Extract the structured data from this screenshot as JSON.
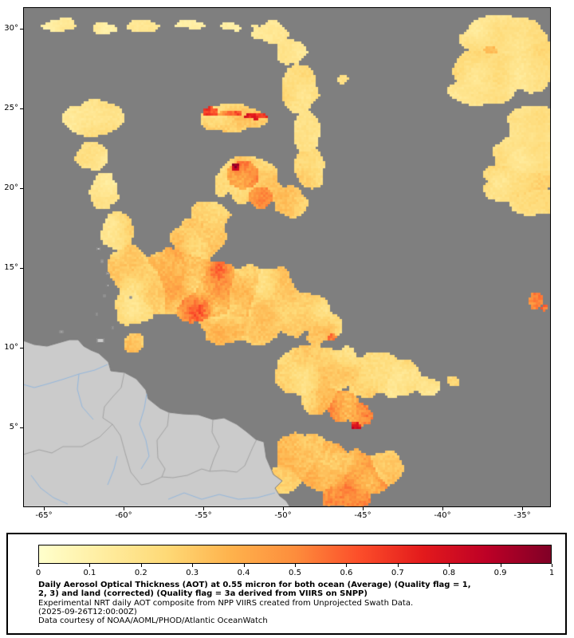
{
  "caption": {
    "line1": "Daily Aerosol Optical Thickness (AOT) at 0.55 micron for both ocean (Average) (Quality flag = 1,",
    "line2": "2, 3) and land (corrected) (Quality flag = 3a derived from VIIRS on SNPP)",
    "line3": "Experimental NRT daily AOT composite from NPP VIIRS created from Unprojected Swath Data.",
    "line4": "(2025-09-26T12:00:00Z)",
    "line5": "Data courtesy of NOAA/AOML/PHOD/Atlantic OceanWatch"
  },
  "colorbar": {
    "min": 0,
    "max": 1,
    "tick_labels": [
      "0",
      "0.1",
      "0.2",
      "0.3",
      "0.4",
      "0.5",
      "0.6",
      "0.7",
      "0.8",
      "0.9",
      "1"
    ],
    "stops": [
      "#ffffcc",
      "#ffeda0",
      "#fed976",
      "#feb24c",
      "#fd8d3c",
      "#fc4e2a",
      "#e31a1c",
      "#bd0026",
      "#800026"
    ]
  },
  "map": {
    "extent": {
      "lon_min": -66.25,
      "lon_max": -33.25,
      "lat_min": 0.05,
      "lat_max": 31.3
    },
    "x_ticks": [
      {
        "value": -65,
        "label": "-65°"
      },
      {
        "value": -60,
        "label": "-60°"
      },
      {
        "value": -55,
        "label": "-55°"
      },
      {
        "value": -50,
        "label": "-50°"
      },
      {
        "value": -45,
        "label": "-45°"
      },
      {
        "value": -40,
        "label": "-40°"
      },
      {
        "value": -35,
        "label": "-35°"
      }
    ],
    "y_ticks": [
      {
        "value": 30,
        "label": "30°"
      },
      {
        "value": 25,
        "label": "25°"
      },
      {
        "value": 20,
        "label": "20°"
      },
      {
        "value": 15,
        "label": "15°"
      },
      {
        "value": 10,
        "label": "10°"
      },
      {
        "value": 5,
        "label": "5°"
      }
    ],
    "colors": {
      "no_data": "#7f7f7f",
      "land": "#cbcbcb",
      "coast": "#7d7d7d",
      "border": "#a3a3a3",
      "river": "#93b7dd",
      "frame": "#000000"
    },
    "land_polygon": [
      [
        -66.3,
        10.45
      ],
      [
        -65.6,
        10.2
      ],
      [
        -64.8,
        10.1
      ],
      [
        -64.1,
        10.3
      ],
      [
        -63.4,
        10.5
      ],
      [
        -62.85,
        10.5
      ],
      [
        -62.5,
        10.1
      ],
      [
        -62.05,
        9.85
      ],
      [
        -61.55,
        9.65
      ],
      [
        -60.95,
        9.1
      ],
      [
        -60.8,
        8.55
      ],
      [
        -59.95,
        8.45
      ],
      [
        -59.2,
        8.05
      ],
      [
        -58.6,
        7.35
      ],
      [
        -58.45,
        6.8
      ],
      [
        -57.7,
        6.2
      ],
      [
        -57.15,
        5.95
      ],
      [
        -56.3,
        5.85
      ],
      [
        -55.3,
        5.8
      ],
      [
        -54.4,
        5.5
      ],
      [
        -53.7,
        5.6
      ],
      [
        -52.9,
        5.2
      ],
      [
        -52.3,
        4.75
      ],
      [
        -51.7,
        4.25
      ],
      [
        -51.2,
        4.1
      ],
      [
        -51.05,
        3.1
      ],
      [
        -50.6,
        2.05
      ],
      [
        -50.05,
        1.65
      ],
      [
        -50.5,
        1.2
      ],
      [
        -50.2,
        0.7
      ],
      [
        -49.8,
        0.4
      ],
      [
        -49.55,
        0.0
      ],
      [
        -66.3,
        0.0
      ]
    ],
    "borders": [
      [
        [
          -59.95,
          8.45
        ],
        [
          -60.15,
          7.5
        ],
        [
          -60.7,
          6.9
        ],
        [
          -61.2,
          6.3
        ],
        [
          -61.3,
          5.6
        ],
        [
          -60.7,
          5.2
        ]
      ],
      [
        [
          -60.7,
          5.2
        ],
        [
          -60.2,
          4.5
        ],
        [
          -59.9,
          3.4
        ],
        [
          -59.55,
          2.2
        ],
        [
          -58.9,
          1.4
        ],
        [
          -58.4,
          1.5
        ],
        [
          -57.6,
          1.9
        ],
        [
          -56.9,
          1.85
        ],
        [
          -56.0,
          2.0
        ],
        [
          -55.1,
          2.4
        ],
        [
          -54.6,
          2.25
        ],
        [
          -53.7,
          2.3
        ],
        [
          -52.9,
          2.2
        ],
        [
          -52.4,
          2.6
        ],
        [
          -51.9,
          3.75
        ],
        [
          -51.68,
          4.2
        ]
      ],
      [
        [
          -60.7,
          5.2
        ],
        [
          -61.5,
          4.4
        ],
        [
          -62.6,
          3.8
        ],
        [
          -63.8,
          3.8
        ],
        [
          -64.5,
          3.4
        ],
        [
          -65.3,
          3.6
        ],
        [
          -66.3,
          3.3
        ]
      ],
      [
        [
          -57.15,
          5.95
        ],
        [
          -57.25,
          5.1
        ],
        [
          -57.9,
          4.2
        ],
        [
          -57.85,
          3.1
        ],
        [
          -57.4,
          2.4
        ],
        [
          -57.6,
          1.9
        ]
      ],
      [
        [
          -54.4,
          5.5
        ],
        [
          -54.45,
          4.7
        ],
        [
          -54.0,
          3.8
        ],
        [
          -54.35,
          3.0
        ],
        [
          -54.6,
          2.25
        ]
      ]
    ],
    "rivers": [
      [
        [
          -61.0,
          8.95
        ],
        [
          -61.8,
          8.6
        ],
        [
          -62.8,
          8.35
        ],
        [
          -63.7,
          8.05
        ],
        [
          -64.7,
          7.75
        ],
        [
          -65.6,
          7.5
        ],
        [
          -66.3,
          7.7
        ]
      ],
      [
        [
          -62.8,
          8.35
        ],
        [
          -62.9,
          7.4
        ],
        [
          -62.6,
          6.3
        ],
        [
          -61.9,
          5.5
        ]
      ],
      [
        [
          -58.55,
          7.1
        ],
        [
          -58.7,
          6.2
        ],
        [
          -59.0,
          5.2
        ],
        [
          -58.6,
          4.2
        ],
        [
          -58.4,
          3.2
        ],
        [
          -58.9,
          2.4
        ]
      ],
      [
        [
          -60.4,
          3.2
        ],
        [
          -60.6,
          2.4
        ],
        [
          -61.0,
          1.4
        ]
      ],
      [
        [
          -65.8,
          2.0
        ],
        [
          -65.2,
          1.2
        ],
        [
          -64.4,
          0.6
        ],
        [
          -63.5,
          0.2
        ]
      ],
      [
        [
          -50.5,
          0.9
        ],
        [
          -51.6,
          0.6
        ],
        [
          -52.8,
          0.5
        ],
        [
          -54.0,
          0.8
        ],
        [
          -55.1,
          0.5
        ],
        [
          -56.2,
          0.9
        ],
        [
          -57.2,
          0.5
        ]
      ]
    ],
    "islands": [
      [
        -61.45,
        10.45,
        9,
        6
      ],
      [
        -60.68,
        11.25,
        3,
        3
      ],
      [
        -63.9,
        11.0,
        5,
        3
      ],
      [
        -61.68,
        12.1,
        3,
        3
      ],
      [
        -61.2,
        13.25,
        3,
        3
      ],
      [
        -59.55,
        13.15,
        3,
        3
      ],
      [
        -60.98,
        13.9,
        3,
        4
      ],
      [
        -61.0,
        14.65,
        3,
        4
      ],
      [
        -61.35,
        15.42,
        3,
        4
      ],
      [
        -61.57,
        16.2,
        4,
        4
      ]
    ],
    "aot_blobs": [
      [
        -64.0,
        30.3,
        1.5,
        0.6,
        0.15,
        0.55
      ],
      [
        -61.5,
        30.0,
        1.6,
        0.5,
        0.15,
        0.5
      ],
      [
        -58.8,
        30.2,
        1.4,
        0.5,
        0.15,
        0.5
      ],
      [
        -56.0,
        30.3,
        1.6,
        0.5,
        0.15,
        0.5
      ],
      [
        -53.5,
        30.1,
        1.4,
        0.5,
        0.15,
        0.45
      ],
      [
        -50.8,
        29.8,
        1.6,
        0.8,
        0.18,
        0.7
      ],
      [
        -49.5,
        28.6,
        1.0,
        0.8,
        0.18,
        0.8
      ],
      [
        -36.0,
        29.4,
        2.4,
        1.2,
        0.2,
        1.15
      ],
      [
        -36.6,
        27.5,
        2.6,
        1.3,
        0.22,
        1.15
      ],
      [
        -37.4,
        26.2,
        2.0,
        0.9,
        0.2,
        1.0
      ],
      [
        -34.4,
        27.8,
        1.6,
        1.6,
        0.22,
        1.1
      ],
      [
        -36.9,
        28.7,
        0.7,
        0.5,
        0.32,
        1.0
      ],
      [
        -34.2,
        23.8,
        1.6,
        1.2,
        0.2,
        1.1
      ],
      [
        -34.6,
        22.0,
        2.0,
        1.3,
        0.22,
        1.15
      ],
      [
        -35.5,
        20.4,
        2.1,
        1.2,
        0.25,
        1.1
      ],
      [
        -34.3,
        19.2,
        1.5,
        0.9,
        0.22,
        1.0
      ],
      [
        -35.2,
        20.1,
        0.5,
        0.4,
        0.4,
        0.9
      ],
      [
        -61.9,
        24.3,
        1.7,
        1.1,
        0.22,
        1.1
      ],
      [
        -62.1,
        22.0,
        1.0,
        1.0,
        0.2,
        1.0
      ],
      [
        -61.2,
        19.8,
        0.9,
        1.1,
        0.2,
        1.0
      ],
      [
        -60.4,
        17.3,
        0.9,
        1.2,
        0.25,
        1.0
      ],
      [
        -59.7,
        15.0,
        1.2,
        1.3,
        0.3,
        1.05
      ],
      [
        -54.5,
        24.75,
        0.5,
        0.3,
        0.88,
        1.2
      ],
      [
        -53.3,
        24.65,
        1.2,
        0.3,
        0.6,
        1.0
      ],
      [
        -52.0,
        24.5,
        1.0,
        0.25,
        0.7,
        0.9
      ],
      [
        -53.2,
        24.4,
        2.2,
        0.9,
        0.3,
        0.8
      ],
      [
        -52.3,
        20.6,
        1.4,
        1.2,
        0.5,
        1.0
      ],
      [
        -51.5,
        19.6,
        1.0,
        0.9,
        0.45,
        1.0
      ],
      [
        -52.95,
        21.25,
        0.28,
        0.28,
        0.92,
        1.3
      ],
      [
        -52.0,
        20.3,
        2.2,
        1.8,
        0.28,
        0.8
      ],
      [
        -48.9,
        26.2,
        1.0,
        1.5,
        0.22,
        1.05
      ],
      [
        -48.5,
        23.6,
        0.8,
        1.4,
        0.22,
        0.95
      ],
      [
        -48.3,
        21.2,
        0.9,
        1.3,
        0.28,
        0.95
      ],
      [
        -49.6,
        19.2,
        1.2,
        1.0,
        0.3,
        0.9
      ],
      [
        -46.2,
        26.8,
        0.5,
        0.5,
        0.2,
        0.55
      ],
      [
        -54.6,
        18.2,
        1.2,
        1.0,
        0.3,
        1.0
      ],
      [
        -55.2,
        16.8,
        1.6,
        1.4,
        0.33,
        1.1
      ],
      [
        -56.3,
        14.3,
        2.2,
        1.8,
        0.4,
        1.2
      ],
      [
        -54.3,
        13.6,
        2.0,
        1.7,
        0.5,
        1.2
      ],
      [
        -55.3,
        12.9,
        1.4,
        1.2,
        0.55,
        1.1
      ],
      [
        -52.6,
        13.4,
        1.8,
        1.6,
        0.4,
        1.1
      ],
      [
        -50.8,
        13.0,
        2.0,
        1.7,
        0.3,
        1.15
      ],
      [
        -49.0,
        12.0,
        1.8,
        1.4,
        0.28,
        1.05
      ],
      [
        -47.6,
        11.2,
        1.4,
        1.0,
        0.3,
        0.9
      ],
      [
        -47.0,
        10.7,
        0.6,
        0.5,
        0.55,
        0.7
      ],
      [
        -48.3,
        11.6,
        0.5,
        0.4,
        0.5,
        0.65
      ],
      [
        -58.2,
        13.8,
        1.6,
        1.5,
        0.3,
        1.0
      ],
      [
        -59.3,
        12.6,
        1.2,
        1.2,
        0.25,
        0.9
      ],
      [
        -53.5,
        11.3,
        1.8,
        1.0,
        0.35,
        0.9
      ],
      [
        -51.5,
        11.0,
        1.5,
        0.9,
        0.3,
        0.85
      ],
      [
        -59.3,
        10.2,
        0.8,
        0.8,
        0.3,
        0.6
      ],
      [
        -48.5,
        8.5,
        2.0,
        1.5,
        0.3,
        1.1
      ],
      [
        -46.5,
        8.8,
        1.8,
        1.3,
        0.28,
        1.05
      ],
      [
        -44.5,
        8.3,
        1.8,
        1.3,
        0.3,
        1.0
      ],
      [
        -42.6,
        8.0,
        1.4,
        1.1,
        0.25,
        0.9
      ],
      [
        -41.0,
        7.6,
        1.0,
        0.8,
        0.22,
        0.7
      ],
      [
        -39.3,
        7.9,
        0.5,
        0.5,
        0.3,
        0.6
      ],
      [
        -47.8,
        6.8,
        1.2,
        1.0,
        0.35,
        0.95
      ],
      [
        -46.3,
        6.3,
        1.0,
        0.9,
        0.5,
        1.0
      ],
      [
        -45.2,
        5.8,
        0.8,
        0.7,
        0.55,
        0.9
      ],
      [
        -45.4,
        5.15,
        0.25,
        0.25,
        0.9,
        1.2
      ],
      [
        -49.9,
        1.8,
        1.0,
        1.0,
        0.3,
        0.85
      ],
      [
        -48.8,
        3.2,
        1.6,
        1.3,
        0.35,
        1.1
      ],
      [
        -47.0,
        2.5,
        1.8,
        1.4,
        0.4,
        1.15
      ],
      [
        -45.2,
        2.0,
        1.6,
        1.2,
        0.45,
        1.1
      ],
      [
        -43.6,
        2.5,
        1.2,
        1.0,
        0.3,
        0.9
      ],
      [
        -46.0,
        0.8,
        1.5,
        0.9,
        0.5,
        1.0
      ],
      [
        -34.1,
        12.9,
        0.45,
        0.55,
        0.5,
        0.9
      ],
      [
        -33.6,
        12.5,
        0.3,
        0.3,
        0.55,
        0.8
      ]
    ]
  }
}
